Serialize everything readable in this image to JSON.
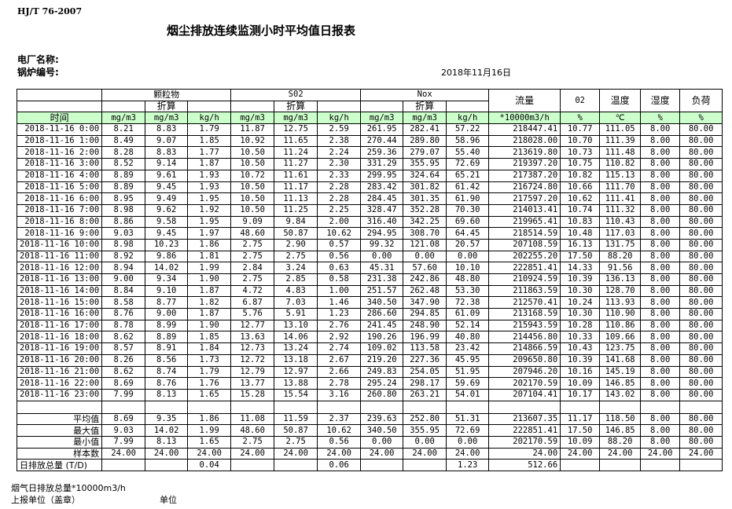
{
  "standard": "HJ/T  76-2007",
  "title": "烟尘排放连续监测小时平均值日报表",
  "plant_label": "电厂名称:",
  "boiler_label": "锅炉编号:",
  "report_date": "2018年11月16日",
  "header": {
    "groups": [
      "颗粒物",
      "S02",
      "Nox"
    ],
    "converted": "折算",
    "flow": "流量",
    "o2": "02",
    "temp": "温度",
    "humidity": "湿度",
    "load": "负荷",
    "time": "时间",
    "units": [
      "mg/m3",
      "mg/m3",
      "kg/h",
      "mg/m3",
      "mg/m3",
      "kg/h",
      "mg/m3",
      "mg/m3",
      "kg/h",
      "*10000m3/h",
      "%",
      "℃",
      "%",
      "%"
    ]
  },
  "rows": [
    [
      "2018-11-16 0:00",
      "8.21",
      "8.83",
      "1.79",
      "11.87",
      "12.75",
      "2.59",
      "261.95",
      "282.41",
      "57.22",
      "218447.41",
      "10.77",
      "111.05",
      "8.00",
      "80.00"
    ],
    [
      "2018-11-16 1:00",
      "8.49",
      "9.07",
      "1.85",
      "10.92",
      "11.65",
      "2.38",
      "270.44",
      "289.80",
      "58.96",
      "218028.00",
      "10.70",
      "111.39",
      "8.00",
      "80.00"
    ],
    [
      "2018-11-16 2:00",
      "8.28",
      "8.83",
      "1.77",
      "10.50",
      "11.24",
      "2.24",
      "259.36",
      "279.07",
      "55.40",
      "213619.80",
      "10.73",
      "111.48",
      "8.00",
      "80.00"
    ],
    [
      "2018-11-16 3:00",
      "8.52",
      "9.14",
      "1.87",
      "10.50",
      "11.27",
      "2.30",
      "331.29",
      "355.95",
      "72.69",
      "219397.20",
      "10.75",
      "110.82",
      "8.00",
      "80.00"
    ],
    [
      "2018-11-16 4:00",
      "8.89",
      "9.61",
      "1.93",
      "10.72",
      "11.61",
      "2.33",
      "299.95",
      "324.64",
      "65.21",
      "217387.20",
      "10.82",
      "115.13",
      "8.00",
      "80.00"
    ],
    [
      "2018-11-16 5:00",
      "8.89",
      "9.45",
      "1.93",
      "10.50",
      "11.17",
      "2.28",
      "283.42",
      "301.82",
      "61.42",
      "216724.80",
      "10.66",
      "111.70",
      "8.00",
      "80.00"
    ],
    [
      "2018-11-16 6:00",
      "8.95",
      "9.49",
      "1.95",
      "10.50",
      "11.13",
      "2.28",
      "284.45",
      "301.35",
      "61.90",
      "217597.20",
      "10.62",
      "111.41",
      "8.00",
      "80.00"
    ],
    [
      "2018-11-16 7:00",
      "8.98",
      "9.62",
      "1.92",
      "10.50",
      "11.25",
      "2.25",
      "328.47",
      "352.28",
      "70.30",
      "214013.41",
      "10.74",
      "111.32",
      "8.00",
      "80.00"
    ],
    [
      "2018-11-16 8:00",
      "8.86",
      "9.58",
      "1.95",
      "9.09",
      "9.84",
      "2.00",
      "316.40",
      "342.25",
      "69.60",
      "219965.41",
      "10.83",
      "110.43",
      "8.00",
      "80.00"
    ],
    [
      "2018-11-16 9:00",
      "9.03",
      "9.45",
      "1.97",
      "48.60",
      "50.87",
      "10.62",
      "294.95",
      "308.70",
      "64.45",
      "218514.59",
      "10.48",
      "117.03",
      "8.00",
      "80.00"
    ],
    [
      "2018-11-16 10:00",
      "8.98",
      "10.23",
      "1.86",
      "2.75",
      "2.90",
      "0.57",
      "99.32",
      "121.08",
      "20.57",
      "207108.59",
      "16.13",
      "131.75",
      "8.00",
      "80.00"
    ],
    [
      "2018-11-16 11:00",
      "8.92",
      "9.86",
      "1.81",
      "2.75",
      "2.75",
      "0.56",
      "0.00",
      "0.00",
      "0.00",
      "202255.20",
      "17.50",
      "88.20",
      "8.00",
      "80.00"
    ],
    [
      "2018-11-16 12:00",
      "8.94",
      "14.02",
      "1.99",
      "2.84",
      "3.24",
      "0.63",
      "45.31",
      "57.60",
      "10.10",
      "222851.41",
      "14.33",
      "91.56",
      "8.00",
      "80.00"
    ],
    [
      "2018-11-16 13:00",
      "9.00",
      "9.34",
      "1.90",
      "2.75",
      "2.85",
      "0.58",
      "231.38",
      "242.86",
      "48.80",
      "210924.59",
      "10.39",
      "136.13",
      "8.00",
      "80.00"
    ],
    [
      "2018-11-16 14:00",
      "8.84",
      "9.10",
      "1.87",
      "4.72",
      "4.83",
      "1.00",
      "251.57",
      "262.48",
      "53.30",
      "211863.59",
      "10.30",
      "128.70",
      "8.00",
      "80.00"
    ],
    [
      "2018-11-16 15:00",
      "8.58",
      "8.77",
      "1.82",
      "6.87",
      "7.03",
      "1.46",
      "340.50",
      "347.90",
      "72.38",
      "212570.41",
      "10.24",
      "113.93",
      "8.00",
      "80.00"
    ],
    [
      "2018-11-16 16:00",
      "8.76",
      "9.00",
      "1.87",
      "5.76",
      "5.91",
      "1.23",
      "286.60",
      "294.85",
      "61.09",
      "213168.59",
      "10.30",
      "110.90",
      "8.00",
      "80.00"
    ],
    [
      "2018-11-16 17:00",
      "8.78",
      "8.99",
      "1.90",
      "12.77",
      "13.10",
      "2.76",
      "241.45",
      "248.90",
      "52.14",
      "215943.59",
      "10.28",
      "110.86",
      "8.00",
      "80.00"
    ],
    [
      "2018-11-16 18:00",
      "8.62",
      "8.89",
      "1.85",
      "13.63",
      "14.06",
      "2.92",
      "190.26",
      "196.99",
      "40.80",
      "214456.80",
      "10.33",
      "109.66",
      "8.00",
      "80.00"
    ],
    [
      "2018-11-16 19:00",
      "8.57",
      "8.91",
      "1.84",
      "12.73",
      "13.24",
      "2.74",
      "109.02",
      "113.58",
      "23.42",
      "214866.59",
      "10.43",
      "123.75",
      "8.00",
      "80.00"
    ],
    [
      "2018-11-16 20:00",
      "8.26",
      "8.56",
      "1.73",
      "12.72",
      "13.18",
      "2.67",
      "219.20",
      "227.36",
      "45.95",
      "209650.80",
      "10.39",
      "141.68",
      "8.00",
      "80.00"
    ],
    [
      "2018-11-16 21:00",
      "8.62",
      "8.74",
      "1.79",
      "12.79",
      "12.97",
      "2.66",
      "249.83",
      "254.05",
      "51.95",
      "207946.20",
      "10.16",
      "145.19",
      "8.00",
      "80.00"
    ],
    [
      "2018-11-16 22:00",
      "8.69",
      "8.76",
      "1.76",
      "13.77",
      "13.88",
      "2.78",
      "295.24",
      "298.17",
      "59.69",
      "202170.59",
      "10.09",
      "146.85",
      "8.00",
      "80.00"
    ],
    [
      "2018-11-16 23:00",
      "7.99",
      "8.13",
      "1.65",
      "15.28",
      "15.54",
      "3.16",
      "260.80",
      "263.21",
      "54.01",
      "207104.41",
      "10.17",
      "143.02",
      "8.00",
      "80.00"
    ]
  ],
  "stats": [
    [
      "平均值",
      "8.69",
      "9.35",
      "1.86",
      "11.08",
      "11.59",
      "2.37",
      "239.63",
      "252.80",
      "51.31",
      "213607.35",
      "11.17",
      "118.50",
      "8.00",
      "80.00"
    ],
    [
      "最大值",
      "9.03",
      "14.02",
      "1.99",
      "48.60",
      "50.87",
      "10.62",
      "340.50",
      "355.95",
      "72.69",
      "222851.41",
      "17.50",
      "146.85",
      "8.00",
      "80.00"
    ],
    [
      "最小值",
      "7.99",
      "8.13",
      "1.65",
      "2.75",
      "2.75",
      "0.56",
      "0.00",
      "0.00",
      "0.00",
      "202170.59",
      "10.09",
      "88.20",
      "8.00",
      "80.00"
    ],
    [
      "样本数",
      "24.00",
      "24.00",
      "24.00",
      "24.00",
      "24.00",
      "24.00",
      "24.00",
      "24.00",
      "24.00",
      "24.00",
      "24.00",
      "24.00",
      "24.00",
      "24.00"
    ],
    [
      "日排放总量 (T/D)",
      "",
      "",
      "0.04",
      "",
      "",
      "0.06",
      "",
      "",
      "1.23",
      "512.66",
      "",
      "",
      "",
      ""
    ]
  ],
  "footer": {
    "flue_gas_total": "烟气日排放总量*10000m3/h",
    "reporting_unit": "上报单位（盖章）",
    "unit": "单位"
  }
}
